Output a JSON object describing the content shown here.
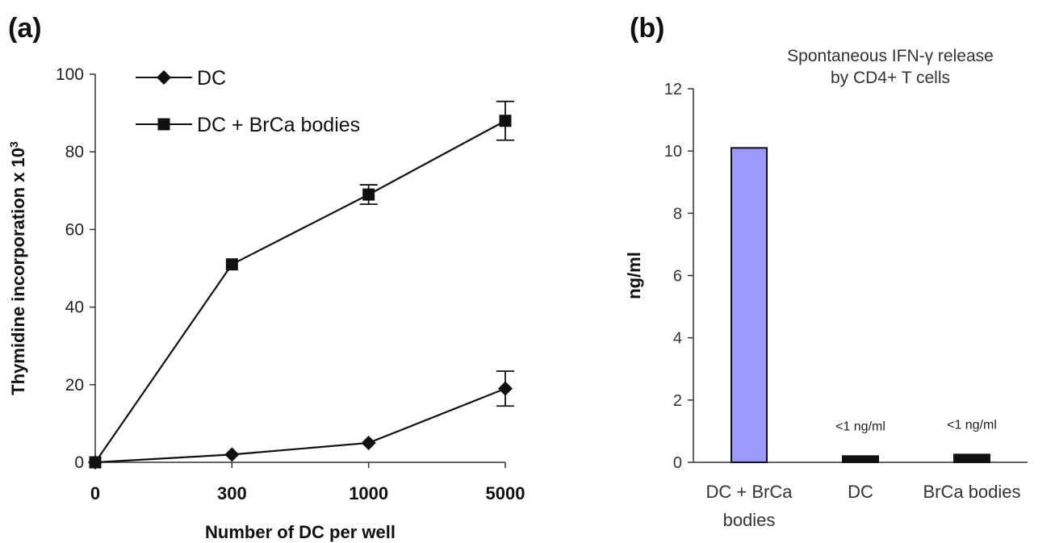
{
  "panels": {
    "a_label": "(a)",
    "b_label": "(b)"
  },
  "chart_data": [
    {
      "type": "line",
      "x_categories": [
        "0",
        "300",
        "1000",
        "5000"
      ],
      "xlabel": "Number of DC per well",
      "ylabel": "Thymidine incorporation x 10",
      "ylabel_superscript": "3",
      "ylim": [
        0,
        100
      ],
      "yticks": [
        "0",
        "20",
        "40",
        "60",
        "80",
        "100"
      ],
      "grid": false,
      "legend_position": "top-left",
      "series": [
        {
          "name": "DC",
          "marker": "diamond",
          "values": [
            0,
            2,
            5,
            19
          ],
          "error": [
            0,
            0,
            0,
            4.5
          ]
        },
        {
          "name": "DC + BrCa bodies",
          "marker": "square",
          "values": [
            0,
            51,
            69,
            88
          ],
          "error": [
            0,
            0,
            2.5,
            5
          ]
        }
      ]
    },
    {
      "type": "bar",
      "title_line1": "Spontaneous IFN-γ release",
      "title_line2": "by CD4+ T cells",
      "ylabel": "ng/ml",
      "ylim": [
        0,
        12
      ],
      "yticks": [
        "0",
        "2",
        "4",
        "6",
        "8",
        "10",
        "12"
      ],
      "grid": false,
      "categories": [
        {
          "line1": "DC + BrCa",
          "line2": "bodies"
        },
        {
          "line1": "DC",
          "line2": ""
        },
        {
          "line1": "BrCa bodies",
          "line2": ""
        }
      ],
      "values": [
        10.1,
        0.2,
        0.25
      ],
      "annotations": [
        "",
        "<1 ng/ml",
        "<1 ng/ml"
      ],
      "bar_colors": [
        "#9999ff",
        "#111111",
        "#111111"
      ]
    }
  ]
}
